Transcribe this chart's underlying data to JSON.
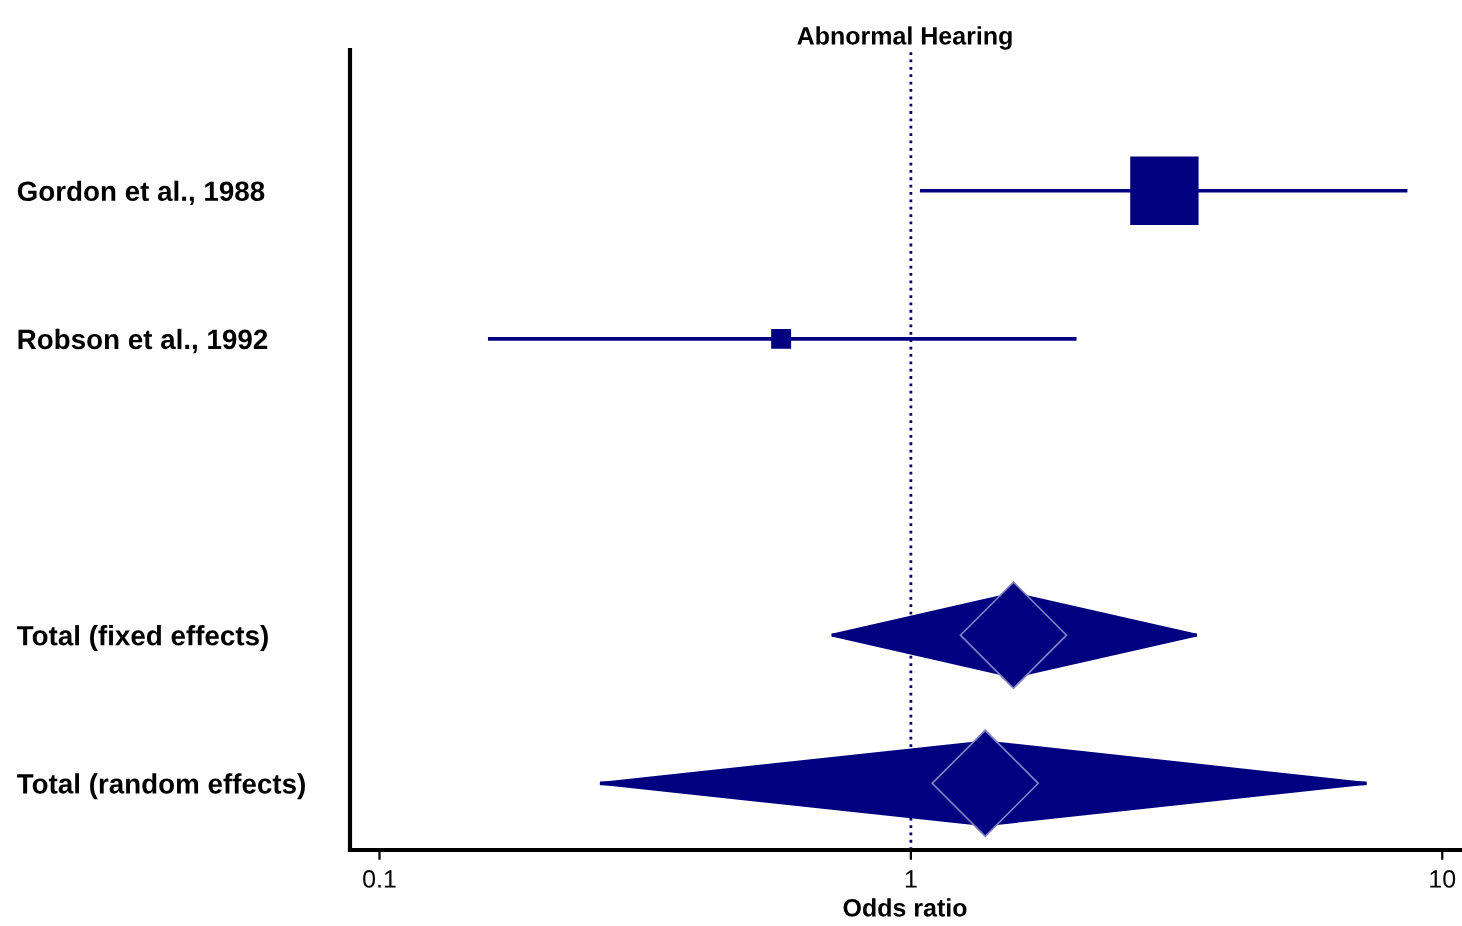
{
  "chart_data": {
    "type": "scatter",
    "orientation": "horizontal",
    "title": "Abnormal Hearing",
    "xlabel": "Odds ratio",
    "log": "x",
    "categories": [
      "Gordon et al., 1988",
      "Robson et al., 1992",
      null,
      "Total (fixed effects)",
      "Total (random effects)"
    ],
    "xlim": [
      0.088,
      10.8
    ],
    "xticks": [
      0.1,
      1,
      10
    ],
    "series": [
      {
        "type": "bubble",
        "marker": "square",
        "color": "#000080",
        "values": [
          3.0,
          0.57,
          null,
          null,
          null
        ],
        "errors": [
          [
            1.04,
            8.6
          ],
          [
            0.16,
            2.05
          ],
          null,
          null,
          null
        ],
        "sizes": [
          1,
          0.075,
          null,
          null,
          null
        ]
      },
      {
        "marker": "diamond",
        "color": "#000080",
        "values": [
          null,
          null,
          null,
          1.56,
          1.38
        ],
        "errors": [
          null,
          null,
          null,
          [
            0.71,
            3.45
          ],
          [
            0.26,
            7.2
          ]
        ]
      }
    ],
    "ref_lines": [
      {
        "axis": "x",
        "value": 1,
        "line_style": "dotted",
        "color": "#000080"
      }
    ]
  }
}
